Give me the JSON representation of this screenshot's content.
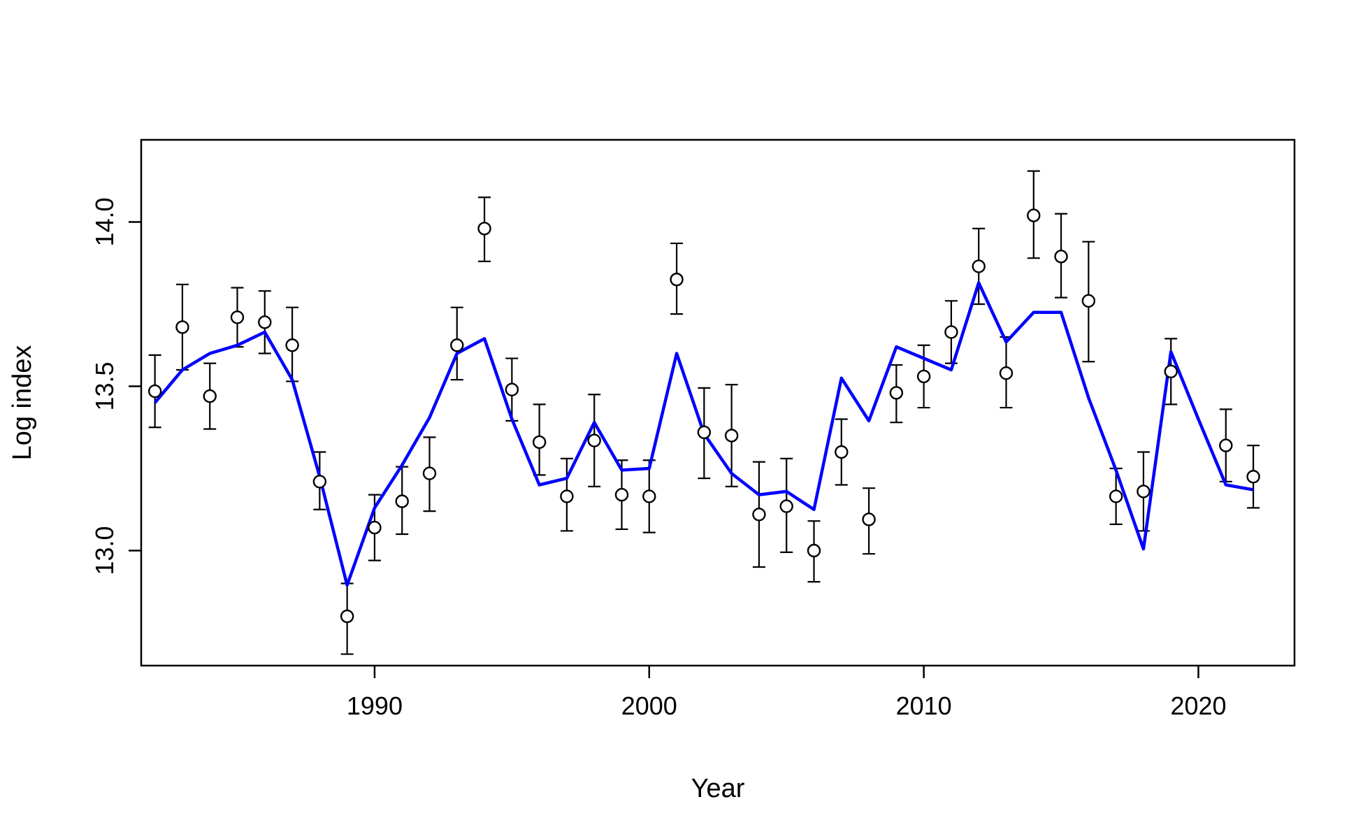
{
  "chart_data": {
    "type": "scatter",
    "title": "",
    "xlabel": "Year",
    "ylabel": "Log index",
    "xlim": [
      1981.5,
      2023.5
    ],
    "ylim": [
      12.65,
      14.25
    ],
    "x_ticks": [
      1990,
      2000,
      2010,
      2020
    ],
    "x_tick_labels": [
      "1990",
      "2000",
      "2010",
      "2020"
    ],
    "y_ticks": [
      13.0,
      13.5,
      14.0
    ],
    "y_tick_labels": [
      "13.0",
      "13.5",
      "14.0"
    ],
    "grid": false,
    "legend": "none",
    "colors": {
      "observed": "#000000",
      "fitted": "#0000ff"
    },
    "series": [
      {
        "type": "scatter-errorbar",
        "x": [
          1982,
          1983,
          1984,
          1985,
          1986,
          1987,
          1988,
          1989,
          1990,
          1991,
          1992,
          1993,
          1994,
          1995,
          1996,
          1997,
          1998,
          1999,
          2000,
          2001,
          2002,
          2003,
          2004,
          2005,
          2006,
          2007,
          2008,
          2009,
          2010,
          2011,
          2012,
          2013,
          2014,
          2015,
          2016,
          2017,
          2018,
          2019,
          2021,
          2022
        ],
        "y": [
          13.485,
          13.68,
          13.47,
          13.71,
          13.695,
          13.625,
          13.21,
          12.8,
          13.07,
          13.15,
          13.235,
          13.625,
          13.98,
          13.49,
          13.33,
          13.165,
          13.335,
          13.17,
          13.165,
          13.825,
          13.36,
          13.35,
          13.11,
          13.135,
          13.0,
          13.3,
          13.095,
          13.48,
          13.53,
          13.665,
          13.865,
          13.54,
          14.02,
          13.895,
          13.76,
          13.165,
          13.18,
          13.545,
          13.32,
          13.225
        ],
        "lower": [
          13.375,
          13.55,
          13.37,
          13.62,
          13.6,
          13.515,
          13.125,
          12.685,
          12.97,
          13.05,
          13.12,
          13.52,
          13.88,
          13.395,
          13.23,
          13.06,
          13.195,
          13.065,
          13.055,
          13.72,
          13.22,
          13.195,
          12.95,
          12.995,
          12.905,
          13.2,
          12.99,
          13.39,
          13.435,
          13.57,
          13.75,
          13.435,
          13.89,
          13.77,
          13.575,
          13.08,
          13.06,
          13.445,
          13.21,
          13.13
        ],
        "upper": [
          13.595,
          13.81,
          13.57,
          13.8,
          13.79,
          13.74,
          13.3,
          12.9,
          13.17,
          13.255,
          13.345,
          13.74,
          14.075,
          13.585,
          13.445,
          13.28,
          13.475,
          13.275,
          13.275,
          13.935,
          13.495,
          13.505,
          13.27,
          13.28,
          13.09,
          13.4,
          13.19,
          13.565,
          13.625,
          13.76,
          13.98,
          13.65,
          14.155,
          14.025,
          13.94,
          13.25,
          13.3,
          13.645,
          13.43,
          13.32
        ]
      },
      {
        "type": "line",
        "x": [
          1982,
          1983,
          1984,
          1985,
          1986,
          1987,
          1988,
          1989,
          1990,
          1991,
          1992,
          1993,
          1994,
          1995,
          1996,
          1997,
          1998,
          1999,
          2000,
          2001,
          2002,
          2003,
          2004,
          2005,
          2006,
          2007,
          2008,
          2009,
          2010,
          2011,
          2012,
          2013,
          2014,
          2015,
          2016,
          2017,
          2018,
          2019,
          2020,
          2021,
          2022
        ],
        "y": [
          13.45,
          13.55,
          13.6,
          13.625,
          13.665,
          13.52,
          13.225,
          12.895,
          13.13,
          13.26,
          13.405,
          13.6,
          13.645,
          13.4,
          13.2,
          13.22,
          13.39,
          13.245,
          13.25,
          13.6,
          13.355,
          13.235,
          13.17,
          13.18,
          13.125,
          13.525,
          13.395,
          13.62,
          13.585,
          13.55,
          13.815,
          13.635,
          13.725,
          13.725,
          13.465,
          13.245,
          13.005,
          13.605,
          13.4,
          13.2,
          13.185
        ]
      }
    ]
  }
}
